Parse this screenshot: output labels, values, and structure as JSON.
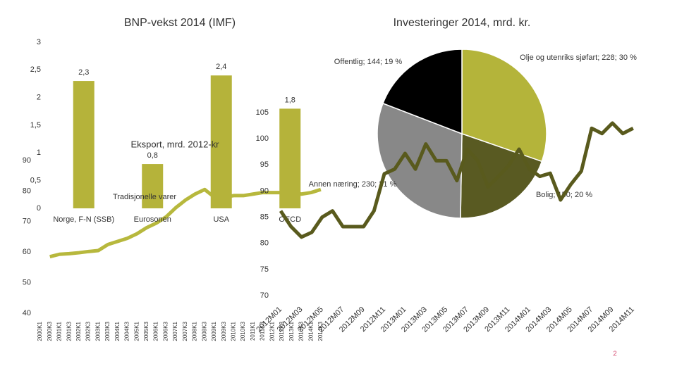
{
  "chart_data": [
    {
      "type": "line",
      "categories": [
        "2000K1",
        "2000K3",
        "2001K1",
        "2001K3",
        "2002K1",
        "2002K3",
        "2003K1",
        "2003K3",
        "2004K1",
        "2004K3",
        "2005K1",
        "2005K3",
        "2006K1",
        "2006K3",
        "2007K1",
        "2007K3",
        "2008K1",
        "2008K3",
        "2009K1",
        "2009K3",
        "2010K1",
        "2010K3",
        "2011K1",
        "2011K3",
        "2012K1",
        "2012K3",
        "2013K1",
        "2013K3",
        "2014K1",
        "2014K3"
      ],
      "series": [
        {
          "color": "#b7b83d",
          "values": [
            null,
            58.5,
            59.3,
            59.5,
            59.8,
            60.2,
            60.5,
            62.5,
            63.5,
            64.5,
            66,
            68,
            69.5,
            71.5,
            74.5,
            77,
            79,
            80.5,
            78,
            78,
            78.5,
            78.5,
            79,
            79.5,
            79.5,
            79.5,
            79.5,
            79,
            79.5,
            80.5
          ]
        }
      ],
      "ylim": [
        40,
        90
      ],
      "yticks": [
        40,
        50,
        60,
        70,
        80,
        90
      ]
    },
    {
      "type": "bar",
      "title": "BNP-vekst 2014 (IMF)",
      "categories": [
        "Norge, F-N (SSB)",
        "Eurosonen",
        "USA",
        "OECD"
      ],
      "values": [
        2.3,
        0.8,
        2.4,
        1.8
      ],
      "value_labels": [
        "2,3",
        "0,8",
        "2,4",
        "1,8"
      ],
      "color": "#b5b33a",
      "ylim": [
        0,
        3
      ],
      "yticks": [
        0,
        {
          "value": 0.5,
          "label": "0,5"
        },
        1,
        {
          "value": 1.5,
          "label": "1,5"
        },
        2,
        {
          "value": 2.5,
          "label": "2,5"
        },
        3
      ]
    },
    {
      "type": "pie",
      "title": "Investeringer 2014, mrd. kr.",
      "categories": [
        "Olje og utenriks sjøfart",
        "Bolig",
        "Annen næring",
        "Offentlig"
      ],
      "values": [
        228,
        150,
        230,
        144
      ],
      "value_labels": [
        "Olje og utenriks sjøfart; 228; 30 %",
        "Bolig; 150; 20 %",
        "Annen næring; 230; 31 %",
        "Offentlig; 144; 19 %"
      ],
      "colors": [
        "#b4b43a",
        "#595a22",
        "#888888",
        "#000000"
      ]
    },
    {
      "type": "line",
      "title": "Eksport, mrd. 2012-kr",
      "annotation": "Tradisjonelle varer",
      "categories": [
        "2012M01",
        null,
        "2012M03",
        null,
        "2012M05",
        null,
        "2012M07",
        null,
        "2012M09",
        null,
        "2012M11",
        null,
        "2013M01",
        null,
        "2013M03",
        null,
        "2013M05",
        null,
        "2013M07",
        null,
        "2013M09",
        null,
        "2013M11",
        null,
        "2014M01",
        null,
        "2014M03",
        null,
        "2014M05",
        null,
        "2014M07",
        null,
        "2014M09",
        null,
        "2014M11"
      ],
      "series": [
        {
          "color": "#595a1d",
          "values": [
            86.2,
            83.2,
            81.2,
            82.1,
            85,
            86.2,
            83.2,
            83.2,
            83.2,
            86.2,
            93.3,
            94.2,
            97.2,
            94.2,
            99,
            95.8,
            95.8,
            92,
            98,
            95.8,
            90.8,
            92.8,
            94.9,
            98,
            94.2,
            92.8,
            93.4,
            88.3,
            91.3,
            93.8,
            102,
            101,
            103,
            101,
            102
          ]
        }
      ],
      "ylim": [
        70,
        105
      ],
      "yticks": [
        70,
        75,
        80,
        85,
        90,
        95,
        100,
        105
      ]
    }
  ],
  "page_number": "2"
}
